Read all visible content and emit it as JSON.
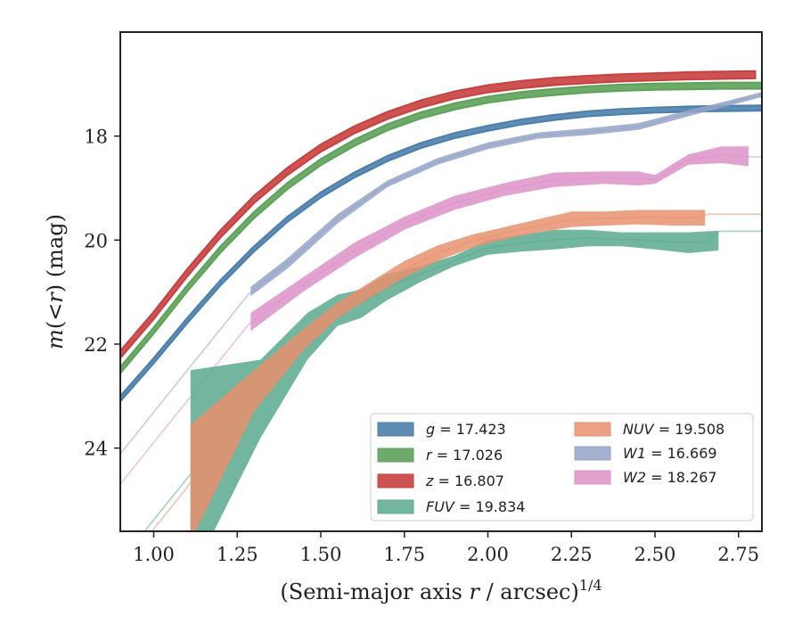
{
  "chart_data": {
    "type": "line",
    "xlabel_text": "(Semi-major axis ",
    "xlabel_var": "r",
    "xlabel_unit": " / arcsec)",
    "xlabel_exp": "1/4",
    "ylabel_m": "m",
    "ylabel_mid": "(<",
    "ylabel_r": "r",
    "ylabel_end": ") (mag)",
    "xlim": [
      0.9,
      2.82
    ],
    "ylim": [
      25.6,
      16.0
    ],
    "y_inverted": true,
    "xticks": [
      "1.00",
      "1.25",
      "1.50",
      "1.75",
      "2.00",
      "2.25",
      "2.50",
      "2.75"
    ],
    "xtick_values": [
      1.0,
      1.25,
      1.5,
      1.75,
      2.0,
      2.25,
      2.5,
      2.75
    ],
    "yticks": [
      "18",
      "20",
      "22",
      "24"
    ],
    "ytick_values": [
      18,
      20,
      22,
      24
    ],
    "legend_placement": "lower-right",
    "series": [
      {
        "name": "g",
        "total": "17.423",
        "color": "#4c7fab",
        "x": [
          0.9,
          1.0,
          1.1,
          1.2,
          1.3,
          1.4,
          1.5,
          1.6,
          1.7,
          1.8,
          1.9,
          2.0,
          2.1,
          2.2,
          2.3,
          2.4,
          2.5,
          2.6,
          2.7,
          2.82
        ],
        "y": [
          23.05,
          22.32,
          21.55,
          20.82,
          20.17,
          19.6,
          19.13,
          18.75,
          18.43,
          18.18,
          17.99,
          17.85,
          17.73,
          17.64,
          17.57,
          17.53,
          17.5,
          17.48,
          17.47,
          17.46
        ],
        "band": 0.05
      },
      {
        "name": "r",
        "total": "17.026",
        "color": "#5ea25a",
        "x": [
          0.9,
          1.0,
          1.1,
          1.2,
          1.3,
          1.4,
          1.5,
          1.6,
          1.7,
          1.8,
          1.9,
          2.0,
          2.1,
          2.2,
          2.3,
          2.4,
          2.5,
          2.6,
          2.7,
          2.82
        ],
        "y": [
          22.5,
          21.74,
          20.93,
          20.18,
          19.52,
          18.96,
          18.5,
          18.13,
          17.83,
          17.6,
          17.43,
          17.3,
          17.21,
          17.15,
          17.1,
          17.07,
          17.05,
          17.04,
          17.03,
          17.03
        ],
        "band": 0.06
      },
      {
        "name": "z",
        "total": "16.807",
        "color": "#c84040",
        "x": [
          0.9,
          1.0,
          1.1,
          1.2,
          1.3,
          1.4,
          1.5,
          1.6,
          1.7,
          1.8,
          1.9,
          2.0,
          2.1,
          2.2,
          2.3,
          2.4,
          2.5,
          2.6,
          2.7,
          2.8
        ],
        "y": [
          22.2,
          21.45,
          20.63,
          19.88,
          19.22,
          18.68,
          18.23,
          17.88,
          17.6,
          17.38,
          17.21,
          17.09,
          17.01,
          16.95,
          16.91,
          16.88,
          16.86,
          16.84,
          16.83,
          16.82
        ],
        "band": 0.07
      },
      {
        "name": "FUV",
        "total": "19.834",
        "color": "#5aa98f",
        "x": [
          1.11,
          1.32,
          1.46,
          1.55,
          1.62,
          1.7,
          1.8,
          1.9,
          2.0,
          2.1,
          2.2,
          2.3,
          2.4,
          2.5,
          2.6,
          2.69
        ],
        "lo": [
          22.5,
          22.3,
          21.4,
          21.05,
          20.95,
          20.65,
          20.5,
          20.3,
          20.0,
          19.9,
          19.8,
          19.8,
          19.85,
          19.85,
          19.85,
          19.82
        ],
        "hi": [
          26.5,
          23.8,
          22.3,
          21.65,
          21.5,
          21.15,
          20.8,
          20.5,
          20.28,
          20.22,
          20.18,
          20.12,
          20.12,
          20.18,
          20.25,
          20.2
        ],
        "asymptote": 19.83
      },
      {
        "name": "NUV",
        "total": "19.508",
        "color": "#e8916d",
        "x": [
          1.11,
          1.3,
          1.45,
          1.55,
          1.65,
          1.75,
          1.85,
          1.95,
          2.05,
          2.15,
          2.25,
          2.35,
          2.45,
          2.55,
          2.65
        ],
        "lo": [
          23.55,
          22.5,
          21.7,
          21.2,
          20.8,
          20.4,
          20.1,
          19.9,
          19.75,
          19.6,
          19.45,
          19.45,
          19.42,
          19.42,
          19.42
        ],
        "hi": [
          25.8,
          23.3,
          22.1,
          21.5,
          21.1,
          20.72,
          20.4,
          20.15,
          19.98,
          19.85,
          19.75,
          19.72,
          19.7,
          19.72,
          19.72
        ],
        "asymptote": 19.5
      },
      {
        "name": "W1",
        "total": "16.669",
        "color": "#94a4c8",
        "x": [
          1.29,
          1.4,
          1.55,
          1.7,
          1.85,
          2.0,
          2.15,
          2.3,
          2.45,
          2.6,
          2.7,
          2.82
        ],
        "lo": [
          20.9,
          20.35,
          19.5,
          18.85,
          18.42,
          18.12,
          17.93,
          17.85,
          17.75,
          17.5,
          17.35,
          17.15
        ],
        "hi": [
          21.08,
          20.55,
          19.68,
          18.98,
          18.55,
          18.25,
          18.05,
          17.98,
          17.88,
          17.62,
          17.45,
          17.25
        ],
        "asymptote": 17.25
      },
      {
        "name": "W2",
        "total": "18.267",
        "color": "#dd92c8",
        "x": [
          1.29,
          1.45,
          1.6,
          1.75,
          1.9,
          2.05,
          2.2,
          2.35,
          2.45,
          2.5,
          2.6,
          2.7,
          2.78
        ],
        "lo": [
          21.4,
          20.7,
          20.05,
          19.55,
          19.15,
          18.9,
          18.7,
          18.68,
          18.68,
          18.75,
          18.35,
          18.2,
          18.2
        ],
        "hi": [
          21.75,
          20.98,
          20.35,
          19.8,
          19.42,
          19.15,
          18.98,
          18.92,
          18.95,
          18.92,
          18.55,
          18.52,
          18.58
        ],
        "asymptote": 18.4
      }
    ]
  }
}
